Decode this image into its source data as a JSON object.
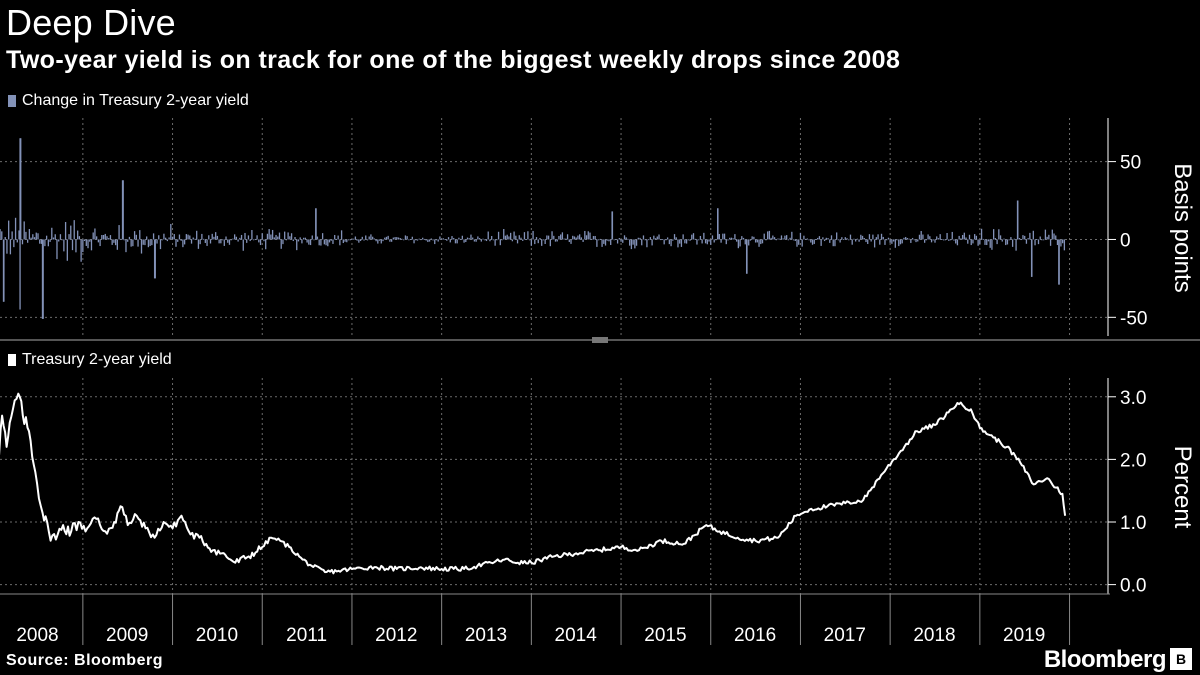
{
  "header": {
    "title": "Deep Dive",
    "subtitle": "Two-year yield is on track for one of the biggest weekly drops since 2008"
  },
  "footer": {
    "source": "Source: Bloomberg",
    "brand": "Bloomberg",
    "brand_icon": "bloomberg-terminal-icon"
  },
  "colors": {
    "background": "#000000",
    "bar_series": "#8392b8",
    "line_series": "#ffffff",
    "grid": "#6b6b6b"
  },
  "chart_data": [
    {
      "type": "bar",
      "legend": "Change in Treasury 2-year yield",
      "ylabel": "Basis points",
      "ylim": [
        -62,
        78
      ],
      "yticks": [
        "50",
        "0",
        "-50"
      ],
      "ytick_values": [
        50,
        0,
        -50
      ],
      "x_range": [
        2008.0,
        2019.95
      ],
      "grid": true,
      "frequency": "weekly",
      "notable_points": [
        {
          "x": 2008.03,
          "y": 38
        },
        {
          "x": 2008.12,
          "y": -40
        },
        {
          "x": 2008.3,
          "y": 65
        },
        {
          "x": 2008.3,
          "y": -45
        },
        {
          "x": 2008.55,
          "y": -51
        },
        {
          "x": 2009.45,
          "y": 38
        },
        {
          "x": 2009.8,
          "y": -25
        },
        {
          "x": 2011.6,
          "y": 20
        },
        {
          "x": 2014.9,
          "y": 18
        },
        {
          "x": 2016.08,
          "y": 20
        },
        {
          "x": 2016.4,
          "y": -22
        },
        {
          "x": 2019.42,
          "y": 25
        },
        {
          "x": 2019.58,
          "y": -24
        },
        {
          "x": 2019.88,
          "y": -29
        }
      ]
    },
    {
      "type": "line",
      "legend": "Treasury 2-year yield",
      "ylabel": "Percent",
      "ylim": [
        -0.15,
        3.3
      ],
      "yticks": [
        "3.0",
        "2.0",
        "1.0",
        "0.0"
      ],
      "ytick_values": [
        3.0,
        2.0,
        1.0,
        0.0
      ],
      "x_categories": [
        "2008",
        "2009",
        "2010",
        "2011",
        "2012",
        "2013",
        "2014",
        "2015",
        "2016",
        "2017",
        "2018",
        "2019"
      ],
      "grid": true,
      "x": [
        2008.0,
        2008.05,
        2008.1,
        2008.15,
        2008.22,
        2008.28,
        2008.33,
        2008.4,
        2008.47,
        2008.55,
        2008.62,
        2008.7,
        2008.78,
        2008.87,
        2008.95,
        2009.05,
        2009.15,
        2009.25,
        2009.35,
        2009.42,
        2009.5,
        2009.6,
        2009.7,
        2009.8,
        2009.9,
        2010.0,
        2010.1,
        2010.2,
        2010.3,
        2010.45,
        2010.55,
        2010.7,
        2010.85,
        2011.0,
        2011.1,
        2011.2,
        2011.3,
        2011.45,
        2011.55,
        2011.7,
        2011.85,
        2012.0,
        2012.25,
        2012.5,
        2012.75,
        2013.0,
        2013.25,
        2013.4,
        2013.55,
        2013.7,
        2013.85,
        2014.0,
        2014.25,
        2014.5,
        2014.75,
        2015.0,
        2015.2,
        2015.45,
        2015.7,
        2015.95,
        2016.1,
        2016.3,
        2016.5,
        2016.75,
        2016.95,
        2017.1,
        2017.3,
        2017.5,
        2017.7,
        2017.9,
        2018.1,
        2018.3,
        2018.5,
        2018.65,
        2018.75,
        2018.9,
        2019.0,
        2019.15,
        2019.3,
        2019.45,
        2019.6,
        2019.75,
        2019.85,
        2019.92,
        2019.95
      ],
      "y": [
        1.55,
        1.9,
        2.7,
        2.2,
        2.8,
        3.05,
        2.7,
        2.45,
        1.8,
        1.15,
        0.85,
        0.72,
        0.95,
        0.85,
        1.0,
        0.9,
        1.05,
        0.85,
        1.0,
        1.25,
        0.95,
        1.1,
        0.9,
        0.75,
        1.0,
        0.9,
        1.1,
        0.8,
        0.75,
        0.55,
        0.5,
        0.35,
        0.45,
        0.6,
        0.75,
        0.7,
        0.6,
        0.4,
        0.3,
        0.2,
        0.22,
        0.25,
        0.28,
        0.25,
        0.27,
        0.25,
        0.25,
        0.3,
        0.35,
        0.4,
        0.35,
        0.35,
        0.45,
        0.5,
        0.55,
        0.6,
        0.55,
        0.7,
        0.65,
        0.95,
        0.85,
        0.75,
        0.7,
        0.75,
        1.1,
        1.2,
        1.25,
        1.3,
        1.35,
        1.75,
        2.1,
        2.45,
        2.55,
        2.75,
        2.9,
        2.8,
        2.5,
        2.35,
        2.2,
        1.95,
        1.6,
        1.7,
        1.55,
        1.45,
        1.1
      ]
    }
  ]
}
